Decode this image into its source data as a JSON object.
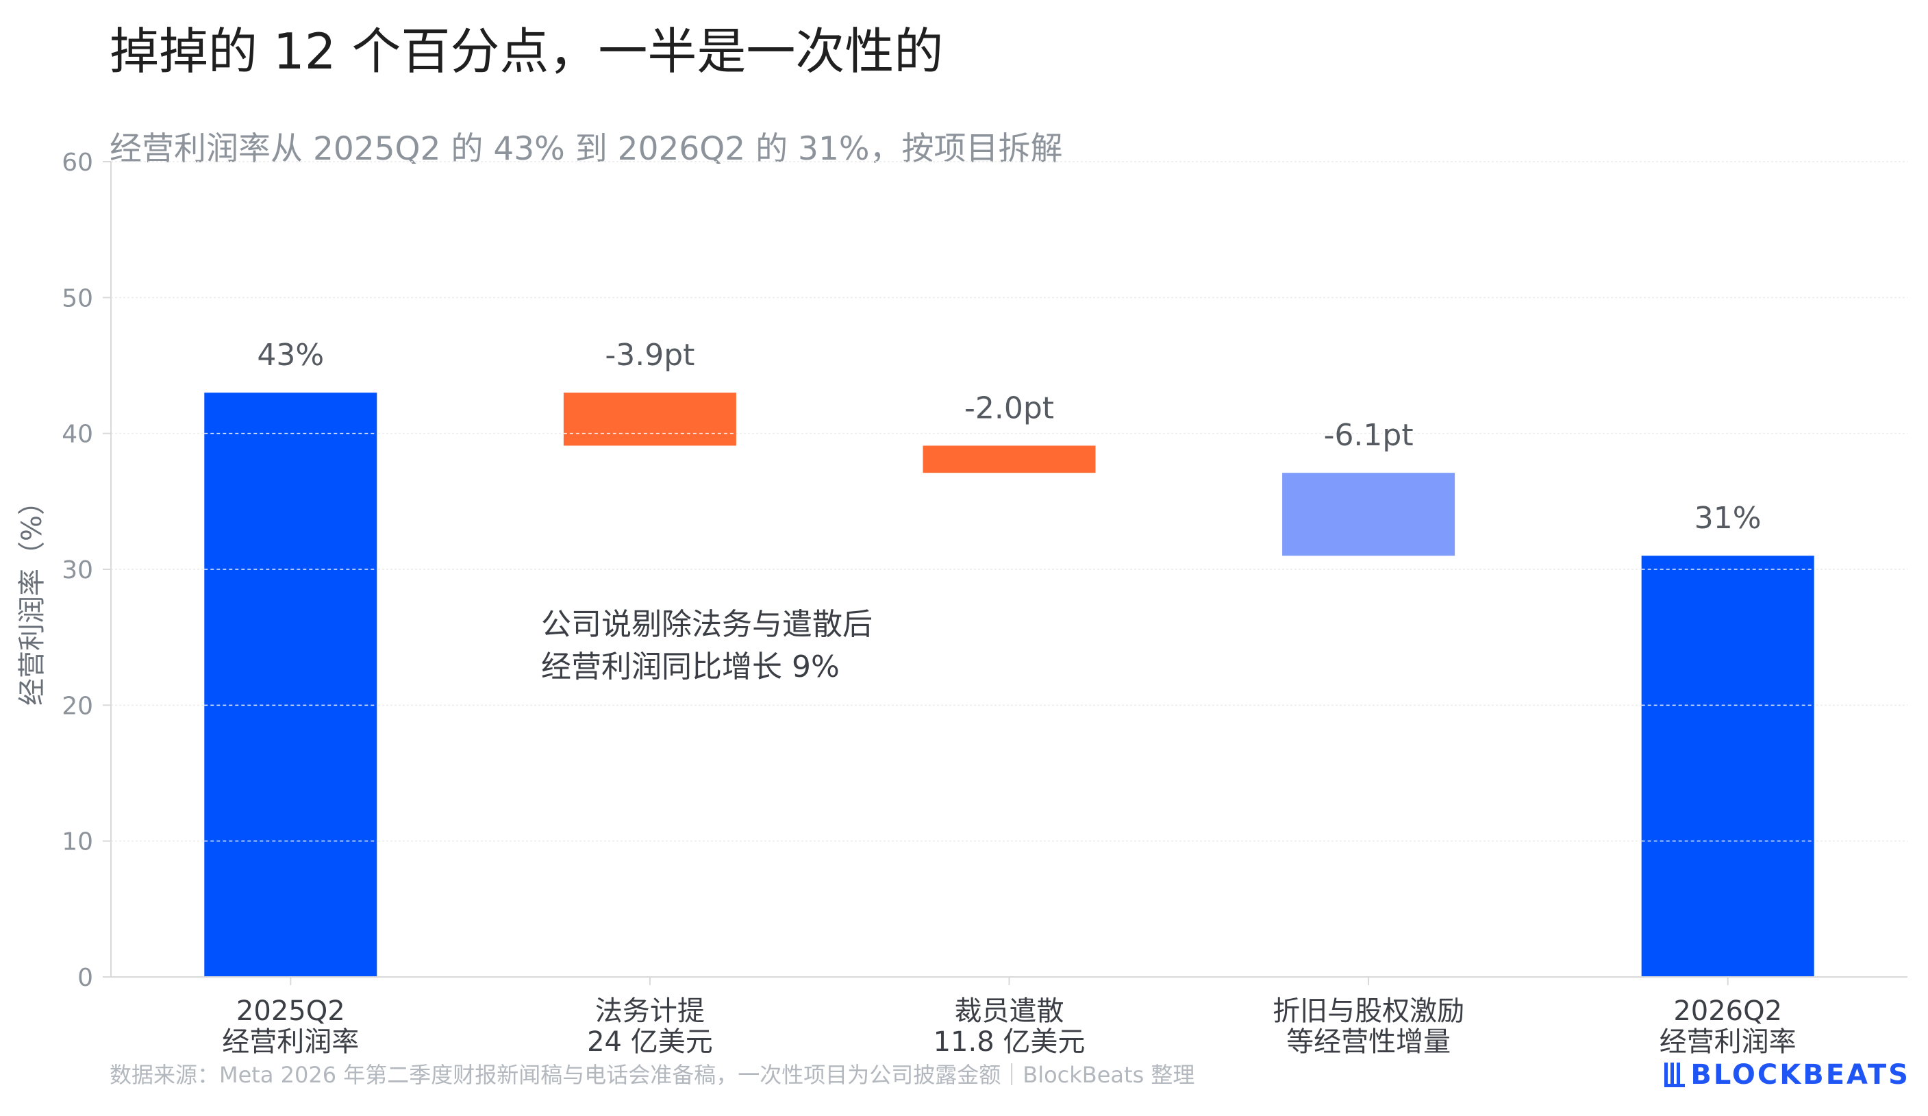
{
  "title": "掉掉的 12 个百分点，一半是一次性的",
  "subtitle": "经营利润率从 2025Q2 的 43% 到 2026Q2 的 31%，按项目拆解",
  "source": "数据来源：Meta 2026 年第二季度财报新闻稿与电话会准备稿，一次性项目为公司披露金额｜BlockBeats 整理",
  "logo_text": "BLOCKBEATS",
  "colors": {
    "total": "#0052fe",
    "one_time": "#ff6a33",
    "operating": "#7f9bfc",
    "grid": "#ececec",
    "axis": "#d9d9d9",
    "logo": "#1f55f5"
  },
  "chart_data": {
    "type": "waterfall",
    "title": "掉掉的 12 个百分点，一半是一次性的",
    "subtitle": "经营利润率从 2025Q2 的 43% 到 2026Q2 的 31%，按项目拆解",
    "ylabel": "经营利润率（%）",
    "xlabel": "",
    "ylim": [
      0,
      60
    ],
    "yticks": [
      0,
      10,
      20,
      30,
      40,
      50,
      60
    ],
    "grid": true,
    "bars": [
      {
        "category": [
          "2025Q2",
          "经营利润率"
        ],
        "kind": "total",
        "start": 0,
        "end": 43,
        "value_label": "43%"
      },
      {
        "category": [
          "法务计提",
          "24 亿美元"
        ],
        "kind": "one_time",
        "start": 43,
        "end": 39.1,
        "value_label": "-3.9pt"
      },
      {
        "category": [
          "裁员遣散",
          "11.8 亿美元"
        ],
        "kind": "one_time",
        "start": 39.1,
        "end": 37.1,
        "value_label": "-2.0pt"
      },
      {
        "category": [
          "折旧与股权激励",
          "等经营性增量"
        ],
        "kind": "operating",
        "start": 37.1,
        "end": 31,
        "value_label": "-6.1pt"
      },
      {
        "category": [
          "2026Q2",
          "经营利润率"
        ],
        "kind": "total",
        "start": 0,
        "end": 31,
        "value_label": "31%"
      }
    ],
    "annotation": [
      "公司说剔除法务与遣散后",
      "经营利润同比增长 9%"
    ]
  }
}
